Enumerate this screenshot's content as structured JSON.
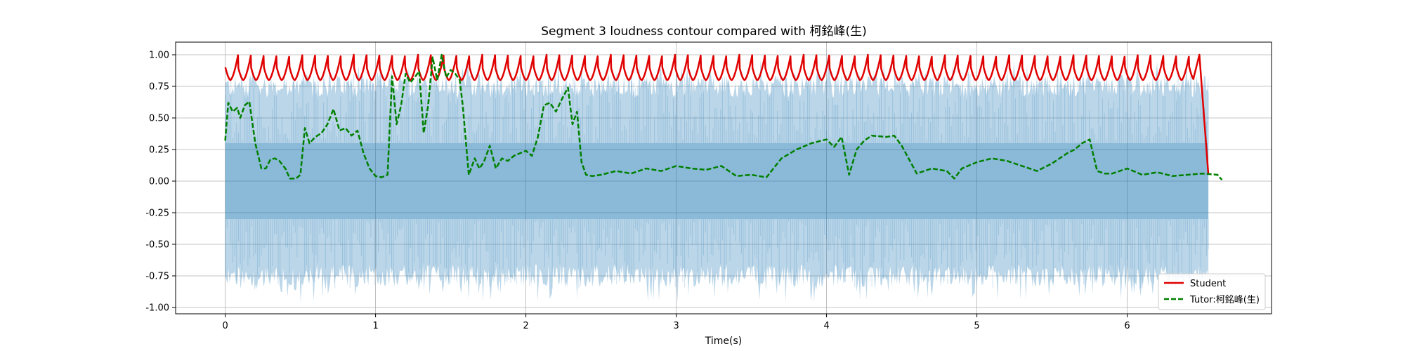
{
  "chart_data": {
    "type": "line",
    "title": "Segment 3 loudness contour compared with 柯銘峰(生)",
    "xlabel": "Time(s)",
    "ylabel": "",
    "xlim": [
      -0.33,
      6.96
    ],
    "ylim": [
      -1.05,
      1.1
    ],
    "x_ticks": [
      0,
      1,
      2,
      3,
      4,
      5,
      6
    ],
    "x_tick_labels": [
      "0",
      "1",
      "2",
      "3",
      "4",
      "5",
      "6"
    ],
    "y_ticks": [
      1.0,
      0.75,
      0.5,
      0.25,
      0.0,
      -0.25,
      -0.5,
      -0.75,
      -1.0
    ],
    "y_tick_labels": [
      "1.00",
      "0.75",
      "0.50",
      "0.25",
      "0.00",
      "-0.25",
      "-0.50",
      "-0.75",
      "-1.00"
    ],
    "grid": true,
    "legend_position": "lower-right",
    "waveform": {
      "color": "#1f77b4",
      "alpha": 0.3,
      "x_range": [
        0,
        6.54
      ],
      "envelope_upper": 0.98,
      "envelope_lower": -0.98
    },
    "series": [
      {
        "name": "Student",
        "color": "#e00000",
        "style": "solid",
        "pulse_period": 0.0855,
        "pulse_min": 0.8,
        "pulse_max": 1.0,
        "x": [
          0.0,
          6.44,
          6.48,
          6.54
        ],
        "y": [
          0.9,
          0.8,
          1.0,
          0.05
        ]
      },
      {
        "name": "Tutor:柯銘峰(生)",
        "color": "#008000",
        "style": "dashed",
        "x": [
          0.0,
          0.02,
          0.05,
          0.08,
          0.1,
          0.13,
          0.16,
          0.2,
          0.24,
          0.27,
          0.3,
          0.33,
          0.36,
          0.4,
          0.43,
          0.47,
          0.5,
          0.53,
          0.56,
          0.6,
          0.64,
          0.68,
          0.72,
          0.76,
          0.8,
          0.84,
          0.88,
          0.92,
          0.96,
          1.0,
          1.04,
          1.08,
          1.11,
          1.14,
          1.17,
          1.2,
          1.23,
          1.26,
          1.29,
          1.32,
          1.35,
          1.38,
          1.41,
          1.44,
          1.47,
          1.5,
          1.53,
          1.56,
          1.58,
          1.62,
          1.66,
          1.69,
          1.72,
          1.76,
          1.8,
          1.84,
          1.88,
          1.92,
          1.96,
          2.0,
          2.04,
          2.08,
          2.12,
          2.16,
          2.2,
          2.24,
          2.28,
          2.31,
          2.34,
          2.37,
          2.4,
          2.44,
          2.5,
          2.6,
          2.7,
          2.8,
          2.9,
          3.0,
          3.1,
          3.2,
          3.3,
          3.4,
          3.5,
          3.6,
          3.7,
          3.8,
          3.9,
          4.0,
          4.05,
          4.1,
          4.15,
          4.2,
          4.25,
          4.3,
          4.4,
          4.45,
          4.5,
          4.6,
          4.7,
          4.8,
          4.85,
          4.9,
          5.0,
          5.1,
          5.2,
          5.3,
          5.4,
          5.5,
          5.6,
          5.65,
          5.7,
          5.75,
          5.8,
          5.85,
          5.9,
          6.0,
          6.1,
          6.2,
          6.3,
          6.4,
          6.5,
          6.6,
          6.63
        ],
        "y": [
          0.32,
          0.62,
          0.55,
          0.58,
          0.5,
          0.6,
          0.63,
          0.3,
          0.1,
          0.1,
          0.17,
          0.18,
          0.16,
          0.1,
          0.02,
          0.02,
          0.05,
          0.42,
          0.3,
          0.35,
          0.38,
          0.45,
          0.57,
          0.4,
          0.42,
          0.36,
          0.4,
          0.22,
          0.1,
          0.04,
          0.03,
          0.05,
          0.83,
          0.45,
          0.6,
          0.85,
          0.78,
          0.82,
          0.87,
          0.38,
          0.6,
          0.98,
          0.8,
          1.0,
          0.82,
          0.88,
          0.85,
          0.8,
          0.6,
          0.05,
          0.18,
          0.1,
          0.15,
          0.28,
          0.1,
          0.18,
          0.16,
          0.2,
          0.22,
          0.24,
          0.2,
          0.35,
          0.6,
          0.62,
          0.55,
          0.65,
          0.74,
          0.45,
          0.55,
          0.15,
          0.05,
          0.04,
          0.05,
          0.08,
          0.06,
          0.1,
          0.08,
          0.12,
          0.1,
          0.09,
          0.12,
          0.04,
          0.05,
          0.03,
          0.18,
          0.25,
          0.3,
          0.33,
          0.27,
          0.35,
          0.05,
          0.25,
          0.32,
          0.36,
          0.35,
          0.36,
          0.28,
          0.06,
          0.1,
          0.08,
          0.02,
          0.1,
          0.15,
          0.18,
          0.16,
          0.12,
          0.08,
          0.14,
          0.22,
          0.25,
          0.3,
          0.33,
          0.08,
          0.06,
          0.06,
          0.1,
          0.05,
          0.07,
          0.04,
          0.05,
          0.06,
          0.05,
          0.01
        ]
      }
    ]
  }
}
